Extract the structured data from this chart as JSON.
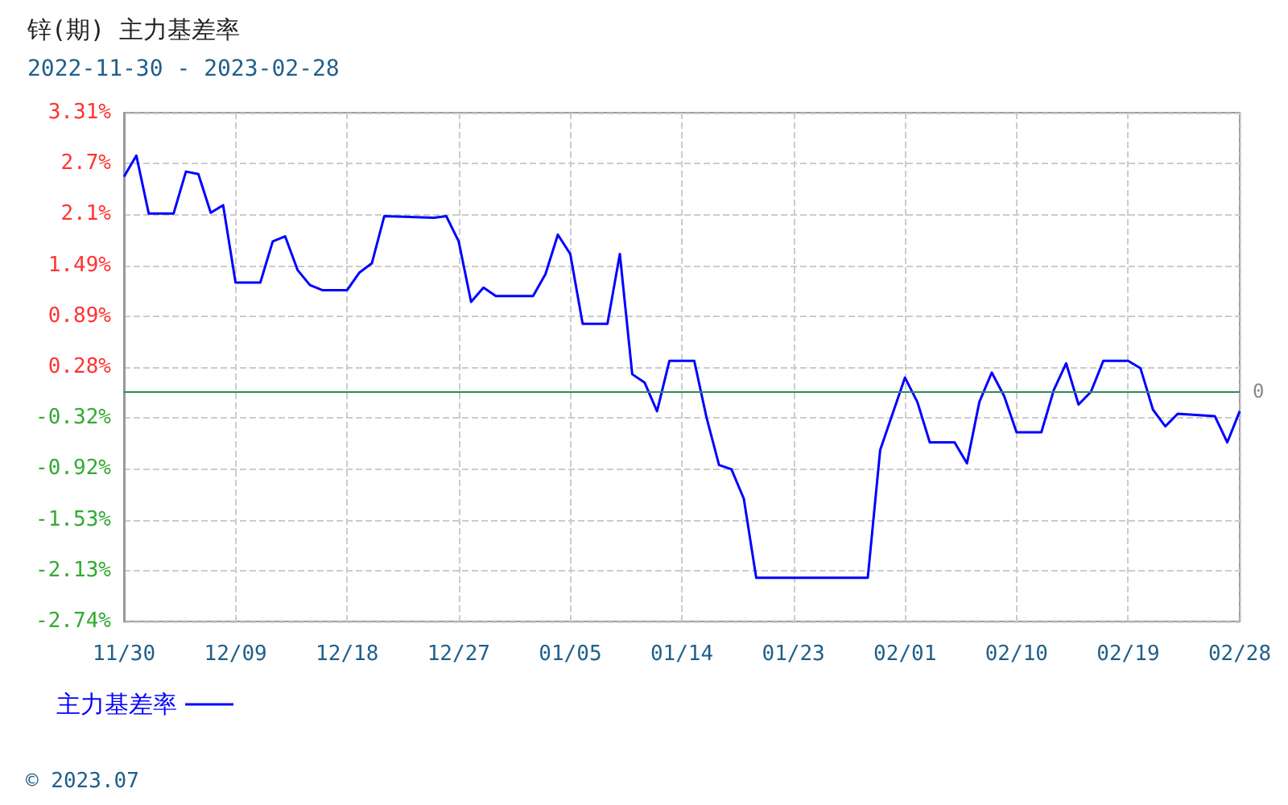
{
  "chart_data": {
    "type": "line",
    "title": "锌(期) 主力基差率",
    "subtitle": "2022-11-30 - 2023-02-28",
    "x": [
      "2022-11-30",
      "2022-12-01",
      "2022-12-02",
      "2022-12-04",
      "2022-12-05",
      "2022-12-06",
      "2022-12-07",
      "2022-12-08",
      "2022-12-09",
      "2022-12-11",
      "2022-12-12",
      "2022-12-13",
      "2022-12-14",
      "2022-12-15",
      "2022-12-16",
      "2022-12-18",
      "2022-12-19",
      "2022-12-20",
      "2022-12-21",
      "2022-12-25",
      "2022-12-26",
      "2022-12-27",
      "2022-12-28",
      "2022-12-29",
      "2022-12-30",
      "2023-01-02",
      "2023-01-03",
      "2023-01-04",
      "2023-01-05",
      "2023-01-06",
      "2023-01-08",
      "2023-01-09",
      "2023-01-10",
      "2023-01-11",
      "2023-01-12",
      "2023-01-13",
      "2023-01-15",
      "2023-01-16",
      "2023-01-17",
      "2023-01-18",
      "2023-01-19",
      "2023-01-20",
      "2023-01-29",
      "2023-01-30",
      "2023-02-01",
      "2023-02-02",
      "2023-02-03",
      "2023-02-05",
      "2023-02-06",
      "2023-02-07",
      "2023-02-08",
      "2023-02-09",
      "2023-02-10",
      "2023-02-12",
      "2023-02-13",
      "2023-02-14",
      "2023-02-15",
      "2023-02-16",
      "2023-02-17",
      "2023-02-19",
      "2023-02-20",
      "2023-02-21",
      "2023-02-22",
      "2023-02-23",
      "2023-02-26",
      "2023-02-27",
      "2023-02-28"
    ],
    "series": [
      {
        "name": "主力基差率",
        "color": "#0000ff",
        "values": [
          2.55,
          2.8,
          2.11,
          2.11,
          2.61,
          2.58,
          2.12,
          2.21,
          1.29,
          1.29,
          1.78,
          1.84,
          1.44,
          1.26,
          1.2,
          1.2,
          1.41,
          1.52,
          2.08,
          2.06,
          2.08,
          1.78,
          1.06,
          1.23,
          1.13,
          1.13,
          1.39,
          1.86,
          1.63,
          0.8,
          0.8,
          1.63,
          0.2,
          0.1,
          -0.24,
          0.36,
          0.36,
          -0.32,
          -0.88,
          -0.93,
          -1.28,
          -2.22,
          -2.22,
          -0.7,
          0.16,
          -0.13,
          -0.61,
          -0.61,
          -0.86,
          -0.13,
          0.22,
          -0.06,
          -0.49,
          -0.49,
          0.01,
          0.33,
          -0.16,
          -0.01,
          0.36,
          0.36,
          0.27,
          -0.22,
          -0.42,
          -0.27,
          -0.3,
          -0.61,
          -0.24
        ]
      }
    ],
    "xlim": [
      "2022-11-30",
      "2023-02-28"
    ],
    "xticks": [
      {
        "value": "2022-11-30",
        "label": "11/30"
      },
      {
        "value": "2022-12-09",
        "label": "12/09"
      },
      {
        "value": "2022-12-18",
        "label": "12/18"
      },
      {
        "value": "2022-12-27",
        "label": "12/27"
      },
      {
        "value": "2023-01-05",
        "label": "01/05"
      },
      {
        "value": "2023-01-14",
        "label": "01/14"
      },
      {
        "value": "2023-01-23",
        "label": "01/23"
      },
      {
        "value": "2023-02-01",
        "label": "02/01"
      },
      {
        "value": "2023-02-10",
        "label": "02/10"
      },
      {
        "value": "2023-02-19",
        "label": "02/19"
      },
      {
        "value": "2023-02-28",
        "label": "02/28"
      }
    ],
    "ylim": [
      -2.74,
      3.31
    ],
    "yticks": [
      {
        "value": -2.74,
        "label": "-2.74%"
      },
      {
        "value": -2.135,
        "label": "-2.13%"
      },
      {
        "value": -1.53,
        "label": "-1.53%"
      },
      {
        "value": -0.925,
        "label": "-0.92%"
      },
      {
        "value": -0.32,
        "label": "-0.32%"
      },
      {
        "value": 0.285,
        "label": "0.28%"
      },
      {
        "value": 0.89,
        "label": "0.89%"
      },
      {
        "value": 1.495,
        "label": "1.49%"
      },
      {
        "value": 2.1,
        "label": "2.1%"
      },
      {
        "value": 2.705,
        "label": "2.7%"
      },
      {
        "value": 3.31,
        "label": "3.31%"
      }
    ],
    "ref_lines": [
      {
        "axis": "y",
        "value": 0,
        "label": "0",
        "color": "#2e8b57"
      }
    ],
    "annotations": [
      "© 2023.07"
    ],
    "grid": true,
    "legend": "bottom left",
    "marker": "none",
    "line_style": "solid"
  }
}
